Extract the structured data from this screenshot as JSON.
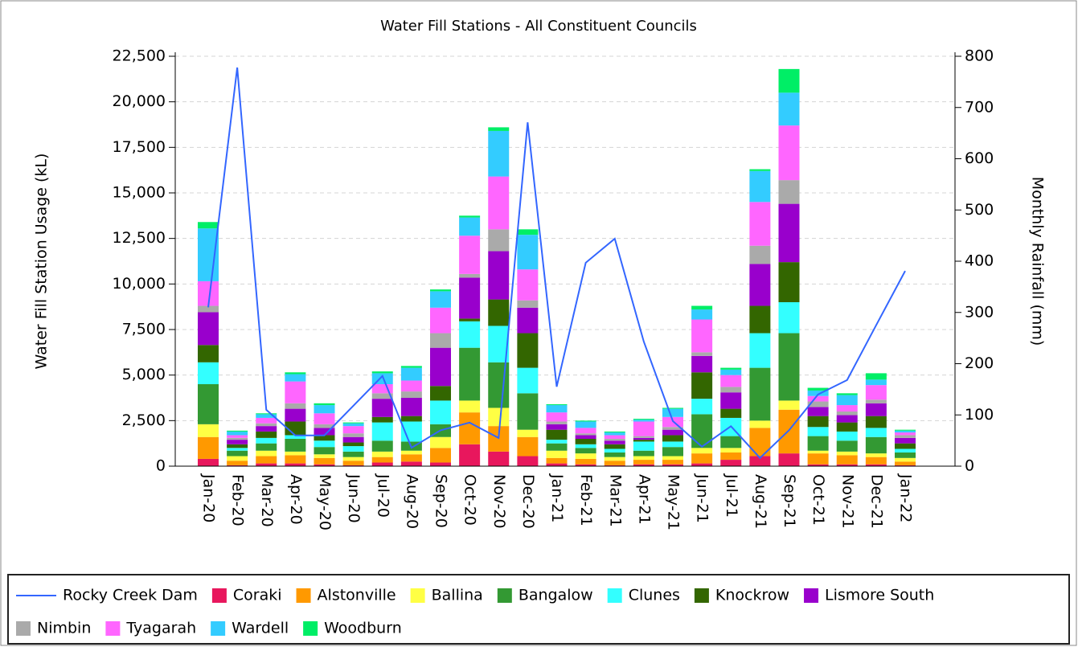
{
  "chart_data": {
    "type": "bar",
    "stacked": true,
    "title": "Water Fill Stations - All Constituent Councils",
    "y_label": "Water Fill Station Usage (kL)",
    "y2_label": "Monthly Rainfall (mm)",
    "categories": [
      "Jan-20",
      "Feb-20",
      "Mar-20",
      "Apr-20",
      "May-20",
      "Jun-20",
      "Jul-20",
      "Aug-20",
      "Sep-20",
      "Oct-20",
      "Nov-20",
      "Dec-20",
      "Jan-21",
      "Feb-21",
      "Mar-21",
      "Apr-21",
      "May-21",
      "Jun-21",
      "Jul-21",
      "Aug-21",
      "Sep-21",
      "Oct-21",
      "Nov-21",
      "Dec-21",
      "Jan-22"
    ],
    "ylim": [
      0,
      22500
    ],
    "yticks": [
      0,
      {
        "value": 2500,
        "label": "2,500"
      },
      {
        "value": 5000,
        "label": "5,000"
      },
      {
        "value": 7500,
        "label": "7,500"
      },
      {
        "value": 10000,
        "label": "10,000"
      },
      {
        "value": 12500,
        "label": "12,500"
      },
      {
        "value": 15000,
        "label": "15,000"
      },
      {
        "value": 17500,
        "label": "17,500"
      },
      {
        "value": 20000,
        "label": "20,000"
      },
      {
        "value": 22500,
        "label": "22,500"
      }
    ],
    "y2lim": [
      0,
      800
    ],
    "y2ticks": [
      0,
      100,
      200,
      300,
      400,
      500,
      600,
      700,
      800
    ],
    "grid": true,
    "legend": "bottom",
    "series": [
      {
        "name": "Rocky Creek Dam",
        "type": "line",
        "axis": "y2",
        "color": "#3366ff",
        "values": [
          310,
          778,
          110,
          60,
          60,
          118,
          176,
          36,
          70,
          85,
          55,
          671,
          155,
          397,
          444,
          243,
          88,
          38,
          78,
          16,
          70,
          140,
          168,
          275,
          381
        ]
      },
      {
        "name": "Coraki",
        "color": "#e8175d",
        "values": [
          400,
          50,
          150,
          150,
          100,
          50,
          200,
          250,
          200,
          1200,
          800,
          550,
          150,
          100,
          50,
          100,
          100,
          150,
          350,
          550,
          700,
          100,
          100,
          100,
          50
        ]
      },
      {
        "name": "Alstonville",
        "color": "#ff9900",
        "values": [
          1200,
          250,
          400,
          450,
          350,
          250,
          300,
          400,
          800,
          1750,
          1400,
          1050,
          300,
          300,
          250,
          250,
          250,
          550,
          400,
          1550,
          2400,
          600,
          500,
          400,
          200
        ]
      },
      {
        "name": "Ballina",
        "color": "#ffff44",
        "values": [
          700,
          250,
          300,
          200,
          200,
          200,
          300,
          200,
          600,
          650,
          1000,
          400,
          400,
          300,
          200,
          200,
          200,
          300,
          250,
          400,
          500,
          150,
          200,
          200,
          200
        ]
      },
      {
        "name": "Bangalow",
        "color": "#339933",
        "values": [
          2200,
          300,
          400,
          700,
          400,
          300,
          600,
          500,
          700,
          2900,
          2500,
          2000,
          400,
          300,
          250,
          300,
          500,
          1850,
          650,
          2900,
          3700,
          800,
          600,
          900,
          300
        ]
      },
      {
        "name": "Clunes",
        "color": "#33ffff",
        "values": [
          1200,
          150,
          300,
          200,
          350,
          300,
          1000,
          1100,
          1300,
          1450,
          2000,
          1400,
          200,
          200,
          200,
          500,
          300,
          850,
          1000,
          1900,
          1700,
          500,
          500,
          500,
          200
        ]
      },
      {
        "name": "Knockrow",
        "color": "#336600",
        "values": [
          950,
          200,
          350,
          750,
          300,
          200,
          300,
          300,
          800,
          150,
          1450,
          1900,
          550,
          300,
          250,
          100,
          350,
          1450,
          500,
          1500,
          2200,
          600,
          500,
          650,
          300
        ]
      },
      {
        "name": "Lismore South",
        "color": "#9900cc",
        "values": [
          1800,
          250,
          300,
          700,
          400,
          300,
          1000,
          1000,
          2100,
          2250,
          2650,
          1400,
          300,
          200,
          200,
          100,
          300,
          900,
          900,
          2300,
          3200,
          500,
          400,
          700,
          300
        ]
      },
      {
        "name": "Nimbin",
        "color": "#aaaaaa",
        "values": [
          350,
          100,
          150,
          300,
          200,
          200,
          300,
          350,
          800,
          200,
          1200,
          400,
          150,
          100,
          100,
          100,
          150,
          200,
          300,
          1000,
          1300,
          300,
          200,
          200,
          150
        ]
      },
      {
        "name": "Tyagarah",
        "color": "#ff66ff",
        "values": [
          1350,
          150,
          300,
          1200,
          600,
          400,
          500,
          600,
          1400,
          2100,
          2900,
          1700,
          500,
          300,
          200,
          800,
          550,
          1800,
          650,
          2400,
          3000,
          300,
          350,
          800,
          150
        ]
      },
      {
        "name": "Wardell",
        "color": "#33ccff",
        "values": [
          2900,
          200,
          200,
          400,
          450,
          150,
          600,
          700,
          900,
          1000,
          2500,
          1900,
          400,
          350,
          150,
          100,
          450,
          550,
          300,
          1700,
          1800,
          300,
          550,
          300,
          100
        ]
      },
      {
        "name": "Woodburn",
        "color": "#00ee66",
        "values": [
          350,
          50,
          50,
          100,
          100,
          50,
          100,
          100,
          100,
          100,
          200,
          300,
          50,
          50,
          50,
          50,
          50,
          200,
          100,
          100,
          1300,
          150,
          100,
          350,
          50
        ]
      }
    ]
  }
}
